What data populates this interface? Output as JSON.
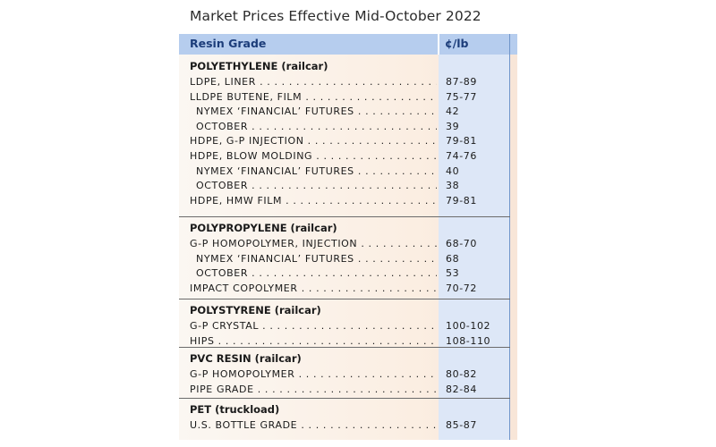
{
  "title": "Market Prices Effective Mid-October 2022",
  "header": {
    "grade": "Resin Grade",
    "unit": "¢/lb"
  },
  "sections": [
    {
      "title": "POLYETHYLENE (railcar)",
      "rows": [
        {
          "name": "LDPE, LINER",
          "price": "87-89",
          "indent": false
        },
        {
          "name": "LLDPE BUTENE, FILM",
          "price": "75-77",
          "indent": false
        },
        {
          "name": "NYMEX ‘FINANCIAL’ FUTURES",
          "price": "42",
          "indent": true
        },
        {
          "name": "OCTOBER",
          "price": "39",
          "indent": true
        },
        {
          "name": "HDPE, G-P INJECTION",
          "price": "79-81",
          "indent": false
        },
        {
          "name": "HDPE, BLOW MOLDING",
          "price": "74-76",
          "indent": false
        },
        {
          "name": "NYMEX ‘FINANCIAL’ FUTURES",
          "price": "40",
          "indent": true
        },
        {
          "name": "OCTOBER",
          "price": "38",
          "indent": true
        },
        {
          "name": "HDPE, HMW FILM",
          "price": "79-81",
          "indent": false
        }
      ]
    },
    {
      "title": "POLYPROPYLENE (railcar)",
      "rows": [
        {
          "name": "G-P HOMOPOLYMER, INJECTION",
          "price": "68-70",
          "indent": false
        },
        {
          "name": "NYMEX ‘FINANCIAL’ FUTURES",
          "price": "68",
          "indent": true
        },
        {
          "name": "OCTOBER",
          "price": "53",
          "indent": true
        },
        {
          "name": "IMPACT COPOLYMER",
          "price": "70-72",
          "indent": false
        }
      ]
    },
    {
      "title": "POLYSTYRENE (railcar)",
      "rows": [
        {
          "name": "G-P CRYSTAL",
          "price": "100-102",
          "indent": false
        },
        {
          "name": "HIPS",
          "price": "108-110",
          "indent": false
        }
      ]
    },
    {
      "title": "PVC RESIN (railcar)",
      "rows": [
        {
          "name": "G-P HOMOPOLYMER",
          "price": "80-82",
          "indent": false
        },
        {
          "name": "PIPE GRADE",
          "price": "82-84",
          "indent": false
        }
      ]
    },
    {
      "title": "PET (truckload)",
      "rows": [
        {
          "name": "U.S. BOTTLE GRADE",
          "price": "85-87",
          "indent": false
        }
      ]
    }
  ]
}
